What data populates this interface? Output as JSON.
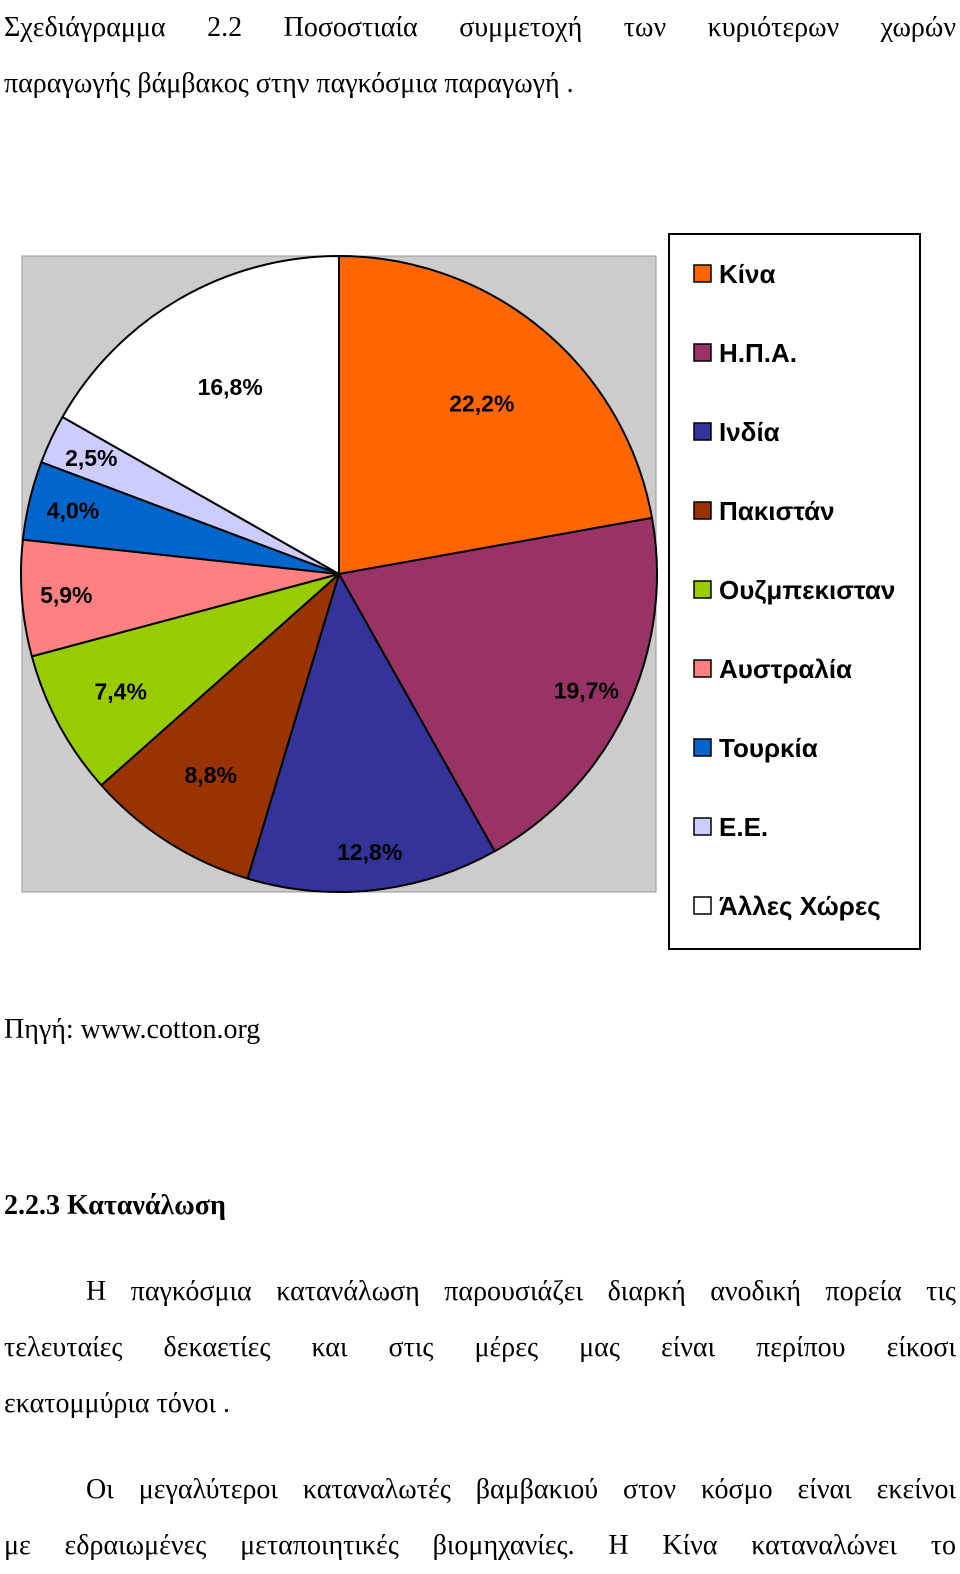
{
  "caption": {
    "line1": "Σχεδιάγραμμα  2.2  Ποσοστιαία  συμμετοχή  των  κυριότερων  χωρών",
    "line2": "παραγωγής βάμβακος στην παγκόσμια παραγωγή ."
  },
  "chart_data": {
    "type": "pie",
    "title": "",
    "start": "12 o'clock, clockwise",
    "plot_background": "#cccccc",
    "slices": [
      {
        "category": "Κίνα",
        "value": 22.2,
        "label": "22,2%",
        "color": "#ff6600"
      },
      {
        "category": "Η.Π.Α.",
        "value": 19.7,
        "label": "19,7%",
        "color": "#993366"
      },
      {
        "category": "Ινδία",
        "value": 12.8,
        "label": "12,8%",
        "color": "#333399"
      },
      {
        "category": "Πακιστάν",
        "value": 8.8,
        "label": "8,8%",
        "color": "#993300"
      },
      {
        "category": "Ουζμπεκισταν",
        "value": 7.4,
        "label": "7,4%",
        "color": "#99cc00"
      },
      {
        "category": "Αυστραλία",
        "value": 5.9,
        "label": "5,9%",
        "color": "#ff8080"
      },
      {
        "category": "Τουρκία",
        "value": 4.0,
        "label": "4,0%",
        "color": "#0066cc"
      },
      {
        "category": "Ε.Ε.",
        "value": 2.5,
        "label": "2,5%",
        "color": "#ccccff"
      },
      {
        "category": "Άλλες Χώρες",
        "value": 16.8,
        "label": "16,8%",
        "color": "#ffffff"
      }
    ],
    "legend_placement": "right"
  },
  "source": "Πηγή: www.cotton.org",
  "section_heading": "2.2.3 Κατανάλωση",
  "paragraph1": {
    "line1": "Η παγκόσμια κατανάλωση παρουσιάζει διαρκή ανοδική πορεία τις",
    "line2": "τελευταίες  δεκαετίες  και  στις  μέρες  μας  είναι  περίπου  είκοσι",
    "line3": "εκατομμύρια τόνοι ."
  },
  "paragraph2": {
    "line1": "Οι μεγαλύτεροι καταναλωτές βαμβακιού στον κόσμο είναι εκείνοι",
    "line2": "με  εδραιωμένες  μεταποιητικές  βιομηχανίες.  Η  Κίνα  καταναλώνει  το"
  }
}
